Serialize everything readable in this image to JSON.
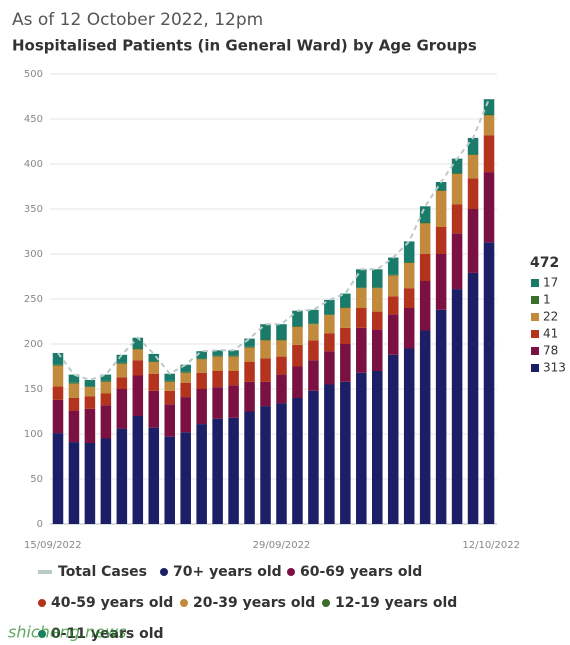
{
  "chart_data": {
    "type": "stacked_bar",
    "title": "As of 12 October 2022, 12pm",
    "subtitle": "Hospitalised Patients (in General Ward) by Age Groups",
    "watermark": "shicheng.news",
    "categories": [
      "15/09/2022",
      null,
      null,
      null,
      null,
      null,
      null,
      null,
      null,
      null,
      null,
      null,
      null,
      null,
      "29/09/2022",
      null,
      null,
      null,
      null,
      null,
      null,
      null,
      null,
      null,
      null,
      null,
      null,
      "12/10/2022"
    ],
    "ylim": [
      0,
      500
    ],
    "yticks": [
      0,
      50,
      100,
      150,
      200,
      250,
      300,
      350,
      400,
      450,
      500
    ],
    "grid": true,
    "series": [
      {
        "name": "Total Cases",
        "type": "line",
        "color": "#b9cbc7",
        "values": [
          190,
          166,
          160,
          166,
          188,
          207,
          189,
          167,
          177,
          192,
          193,
          193,
          206,
          222,
          222,
          237,
          238,
          249,
          256,
          283,
          283,
          296,
          314,
          353,
          380,
          406,
          429,
          472
        ]
      },
      {
        "name": "70+ years old",
        "color": "#1c1f66",
        "values": [
          101,
          91,
          90,
          95,
          106,
          120,
          107,
          97,
          102,
          111,
          117,
          118,
          125,
          131,
          134,
          140,
          148,
          155,
          158,
          168,
          170,
          188,
          195,
          215,
          238,
          261,
          279,
          313
        ]
      },
      {
        "name": "60-69 years old",
        "color": "#7b1142",
        "values": [
          37,
          35,
          38,
          37,
          44,
          45,
          41,
          36,
          39,
          39,
          35,
          36,
          33,
          27,
          32,
          35,
          34,
          37,
          42,
          50,
          46,
          45,
          45,
          55,
          62,
          62,
          71,
          78
        ]
      },
      {
        "name": "40-59 years old",
        "color": "#b4331d",
        "values": [
          15,
          14,
          14,
          13,
          13,
          17,
          19,
          15,
          16,
          18,
          18,
          16,
          22,
          26,
          20,
          24,
          22,
          20,
          18,
          22,
          20,
          20,
          22,
          30,
          30,
          32,
          34,
          41
        ]
      },
      {
        "name": "20-39 years old",
        "color": "#c28a3c",
        "values": [
          23,
          16,
          10,
          13,
          15,
          12,
          13,
          10,
          11,
          15,
          16,
          16,
          16,
          20,
          18,
          20,
          18,
          20,
          22,
          22,
          26,
          23,
          28,
          34,
          40,
          34,
          26,
          22
        ]
      },
      {
        "name": "12-19 years old",
        "color": "#3b6d2b",
        "values": [
          1,
          1,
          1,
          1,
          1,
          1,
          1,
          1,
          1,
          1,
          1,
          1,
          1,
          1,
          1,
          1,
          1,
          1,
          1,
          1,
          1,
          1,
          1,
          1,
          1,
          1,
          1,
          1
        ]
      },
      {
        "name": "0-11 years old",
        "color": "#1b7b6b",
        "values": [
          13,
          9,
          7,
          7,
          9,
          12,
          8,
          8,
          8,
          8,
          6,
          6,
          9,
          17,
          17,
          17,
          15,
          16,
          15,
          20,
          20,
          19,
          23,
          18,
          9,
          16,
          18,
          17
        ]
      }
    ]
  }
}
